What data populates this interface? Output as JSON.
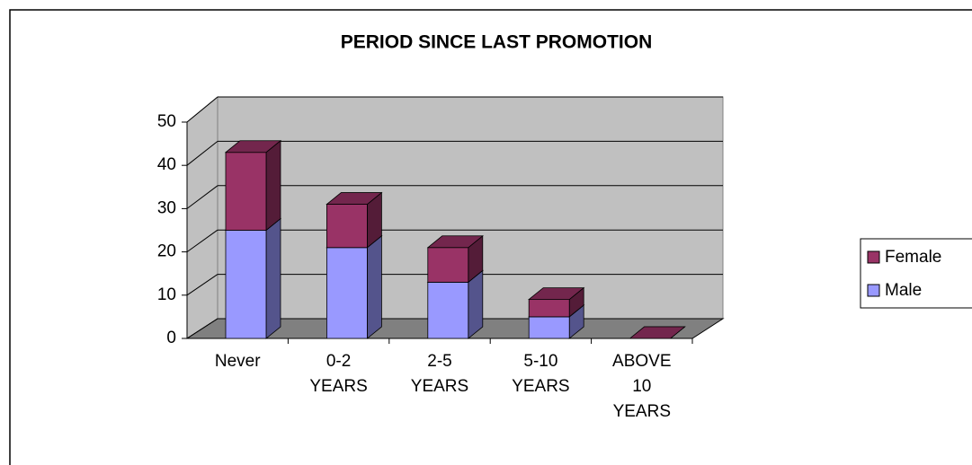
{
  "chart_data": {
    "type": "bar3d_stacked",
    "title": "PERIOD SINCE LAST PROMOTION",
    "categories": [
      "Never",
      "0-2 YEARS",
      "2-5 YEARS",
      "5-10 YEARS",
      "ABOVE 10 YEARS"
    ],
    "series": [
      {
        "name": "Male",
        "color": "#9999ff",
        "values": [
          25,
          21,
          13,
          5,
          0
        ]
      },
      {
        "name": "Female",
        "color": "#993366",
        "values": [
          18,
          10,
          8,
          4,
          0
        ]
      }
    ],
    "ylim": [
      0,
      50
    ],
    "yticks": [
      0,
      10,
      20,
      30,
      40,
      50
    ],
    "grid": true,
    "legend": "right"
  }
}
